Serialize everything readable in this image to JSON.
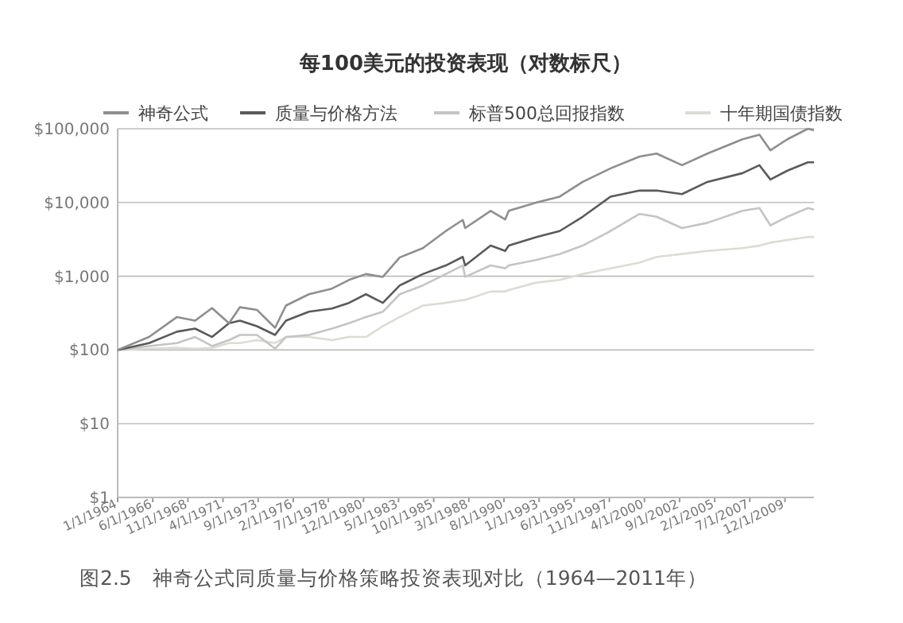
{
  "chart_data": {
    "type": "line",
    "title": "每100美元的投资表现（对数标尺）",
    "x": [
      "1964-01",
      "1966-03",
      "1968-02",
      "1969-05",
      "1970-07",
      "1971-09",
      "1972-06",
      "1973-08",
      "1974-11",
      "1975-08",
      "1977-03",
      "1978-10",
      "1979-12",
      "1981-02",
      "1982-04",
      "1983-06",
      "1985-01",
      "1986-08",
      "1987-10",
      "1987-12",
      "1989-09",
      "1990-09",
      "1990-12",
      "1992-11",
      "1994-06",
      "1996-01",
      "1997-12",
      "1999-12",
      "2001-02",
      "2002-11",
      "2004-08",
      "2007-01",
      "2008-03",
      "2008-12",
      "2010-02",
      "2011-07",
      "2011-12"
    ],
    "series": [
      {
        "name": "神奇公式",
        "color": "#8e8e8e",
        "values": [
          100,
          150,
          280,
          250,
          370,
          230,
          380,
          350,
          200,
          400,
          570,
          680,
          890,
          1070,
          980,
          1800,
          2400,
          4100,
          5800,
          4500,
          7700,
          5900,
          7700,
          10000,
          12000,
          19000,
          29000,
          42000,
          46000,
          32000,
          46000,
          72000,
          83000,
          51000,
          72000,
          100000,
          95000
        ]
      },
      {
        "name": "质量与价格方法",
        "color": "#5a5a5a",
        "values": [
          100,
          124,
          177,
          195,
          150,
          230,
          250,
          210,
          160,
          250,
          330,
          365,
          435,
          570,
          435,
          750,
          1070,
          1400,
          1830,
          1400,
          2600,
          2200,
          2600,
          3400,
          4100,
          6400,
          12000,
          14500,
          14500,
          13000,
          19000,
          25000,
          32000,
          20500,
          27000,
          35000,
          35000
        ]
      },
      {
        "name": "标普500总回报指数",
        "color": "#c4c4c4",
        "values": [
          100,
          113,
          124,
          150,
          113,
          136,
          160,
          160,
          104,
          150,
          160,
          195,
          230,
          280,
          330,
          570,
          750,
          1070,
          1400,
          980,
          1400,
          1280,
          1400,
          1670,
          2000,
          2600,
          4100,
          7000,
          6400,
          4500,
          5300,
          7700,
          8400,
          4900,
          6400,
          8400,
          8000
        ]
      },
      {
        "name": "十年期国债指数",
        "color": "#dedbd2",
        "values": [
          100,
          104,
          107,
          104,
          107,
          124,
          124,
          136,
          124,
          150,
          150,
          136,
          150,
          150,
          210,
          280,
          400,
          435,
          475,
          475,
          620,
          620,
          650,
          820,
          890,
          1070,
          1280,
          1530,
          1830,
          2000,
          2200,
          2400,
          2600,
          2850,
          3100,
          3400,
          3400
        ]
      }
    ],
    "log": true,
    "ylim": [
      1,
      100000
    ],
    "yticks": [
      {
        "value": 1,
        "label": "$1"
      },
      {
        "value": 10,
        "label": "$10"
      },
      {
        "value": 100,
        "label": "$100"
      },
      {
        "value": 1000,
        "label": "$1,000"
      },
      {
        "value": 10000,
        "label": "$10,000"
      },
      {
        "value": 100000,
        "label": "$100,000"
      }
    ],
    "xlim": [
      "1964-01-01",
      "2011-12-01"
    ],
    "xticks": [
      {
        "value": "1964-01-01",
        "label": "1/1/1964"
      },
      {
        "value": "1966-06-01",
        "label": "6/1/1966"
      },
      {
        "value": "1968-11-01",
        "label": "11/1/1968"
      },
      {
        "value": "1971-04-01",
        "label": "4/1/1971"
      },
      {
        "value": "1973-09-01",
        "label": "9/1/1973"
      },
      {
        "value": "1976-02-01",
        "label": "2/1/1976"
      },
      {
        "value": "1978-07-01",
        "label": "7/1/1978"
      },
      {
        "value": "1980-12-01",
        "label": "12/1/1980"
      },
      {
        "value": "1983-05-01",
        "label": "5/1/1983"
      },
      {
        "value": "1985-10-01",
        "label": "10/1/1985"
      },
      {
        "value": "1988-03-01",
        "label": "3/1/1988"
      },
      {
        "value": "1990-08-01",
        "label": "8/1/1990"
      },
      {
        "value": "1993-01-01",
        "label": "1/1/1993"
      },
      {
        "value": "1995-06-01",
        "label": "6/1/1995"
      },
      {
        "value": "1997-11-01",
        "label": "11/1/1997"
      },
      {
        "value": "2000-04-01",
        "label": "4/1/2000"
      },
      {
        "value": "2002-09-01",
        "label": "9/1/2002"
      },
      {
        "value": "2005-02-01",
        "label": "2/1/2005"
      },
      {
        "value": "2007-07-01",
        "label": "7/1/2007"
      },
      {
        "value": "2009-12-01",
        "label": "12/1/2009"
      }
    ],
    "grid": "y",
    "legend": "top",
    "annotations": [
      "图2.5　神奇公式同质量与价格策略投资表现对比（1964—2011年）"
    ]
  }
}
